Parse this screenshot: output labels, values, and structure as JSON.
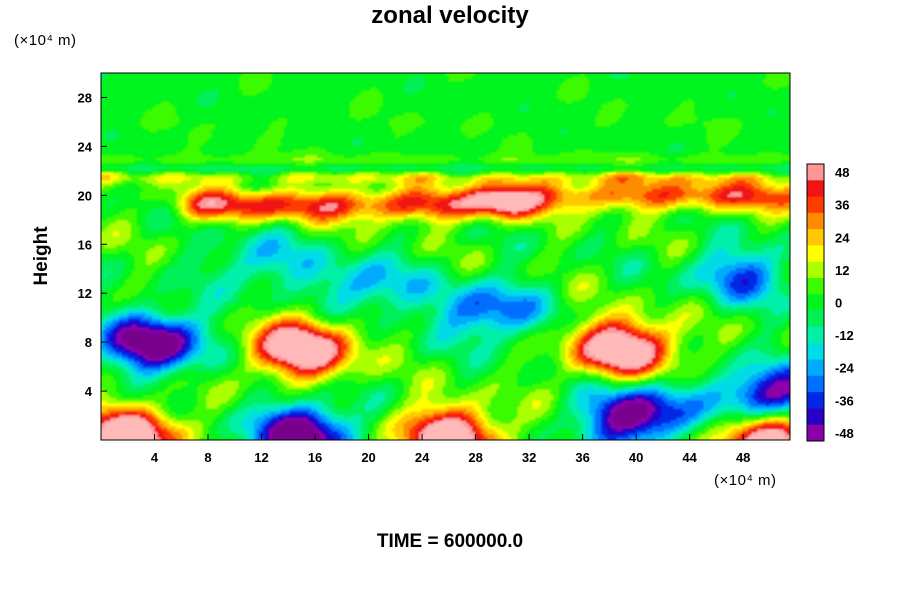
{
  "chart_data": {
    "type": "heatmap",
    "title": "zonal velocity",
    "ylabel": "Height",
    "xlabel": "",
    "x_unit": "(×10⁴ m)",
    "y_unit": "(×10⁴ m)",
    "xlim": [
      0,
      51.5
    ],
    "ylim": [
      0,
      30
    ],
    "x_ticks": [
      4,
      8,
      12,
      16,
      20,
      24,
      28,
      32,
      36,
      40,
      44,
      48
    ],
    "y_ticks": [
      4,
      8,
      12,
      16,
      20,
      24,
      28
    ],
    "colorbar": {
      "ticks": [
        48,
        36,
        24,
        12,
        0,
        -12,
        -24,
        -36,
        -48
      ],
      "range": [
        -48,
        48
      ],
      "step": 6
    },
    "features": [
      {
        "kind": "field_base",
        "value": 2
      },
      {
        "kind": "band",
        "y": 26,
        "value": 1
      },
      {
        "kind": "band",
        "y": 22.8,
        "value": 8
      },
      {
        "kind": "band",
        "y": 22.2,
        "value": -10
      },
      {
        "kind": "band",
        "y": 21.5,
        "value": 12
      },
      {
        "kind": "jet",
        "x": [
          8,
          30
        ],
        "y": 19.2,
        "value": 38
      },
      {
        "kind": "jet",
        "x": [
          30,
          51.5
        ],
        "y": 20.0,
        "value": 32
      },
      {
        "kind": "blob",
        "x": 15,
        "y": 7.5,
        "value": 52
      },
      {
        "kind": "blob",
        "x": 39,
        "y": 7.5,
        "value": 52
      },
      {
        "kind": "blob",
        "x": 4,
        "y": 8,
        "value": -50
      },
      {
        "kind": "blob",
        "x": 15,
        "y": 0.5,
        "value": -50
      },
      {
        "kind": "blob",
        "x": 40,
        "y": 2,
        "value": -50
      },
      {
        "kind": "blob",
        "x": 50,
        "y": 3.5,
        "value": -48
      },
      {
        "kind": "blob",
        "x": 2,
        "y": 0.3,
        "value": 52
      },
      {
        "kind": "blob",
        "x": 26,
        "y": 0.3,
        "value": 50
      },
      {
        "kind": "blob",
        "x": 50,
        "y": 0.3,
        "value": 52
      },
      {
        "kind": "blob",
        "x": 29,
        "y": 10.5,
        "value": -30
      },
      {
        "kind": "blob",
        "x": 20,
        "y": 12.5,
        "value": -22
      },
      {
        "kind": "blob",
        "x": 48,
        "y": 13.5,
        "value": -26
      },
      {
        "kind": "blob",
        "x": 12,
        "y": 14.5,
        "value": -18
      }
    ]
  },
  "time_label": "TIME = 600000.0"
}
